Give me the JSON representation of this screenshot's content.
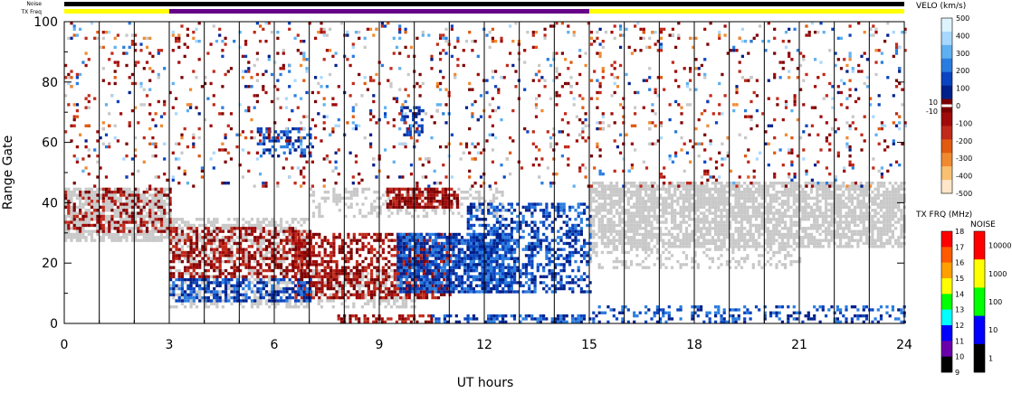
{
  "top_bar": {
    "noise_label": "Noise",
    "txfreq_label": "TX Freq",
    "noise_color": "#000000",
    "txfreq_segments": [
      {
        "from": 0,
        "to": 3,
        "color": "#ffff00"
      },
      {
        "from": 3,
        "to": 15,
        "color": "#660088"
      },
      {
        "from": 15,
        "to": 24,
        "color": "#ffff00"
      }
    ]
  },
  "chart_data": {
    "type": "heatmap",
    "title": "",
    "xlabel": "UT hours",
    "ylabel": "Range Gate",
    "xlim": [
      0,
      24
    ],
    "ylim": [
      0,
      100
    ],
    "x_ticks": [
      "0",
      "3",
      "6",
      "9",
      "12",
      "15",
      "18",
      "21",
      "24"
    ],
    "y_ticks": [
      "0",
      "20",
      "40",
      "60",
      "80",
      "100"
    ],
    "scan_boundaries_hours": [
      1,
      2,
      3,
      4,
      5,
      6,
      7,
      8,
      9,
      10,
      11,
      12,
      13,
      14,
      15,
      16,
      17,
      18,
      19,
      20,
      21,
      22,
      23
    ],
    "ground_scatter_color": "#c8c8c8",
    "regions": [
      {
        "kind": "ground",
        "x": [
          0,
          3
        ],
        "y": [
          27,
          45
        ],
        "density": 0.75
      },
      {
        "kind": "ground",
        "x": [
          3,
          7
        ],
        "y": [
          20,
          35
        ],
        "density": 0.55
      },
      {
        "kind": "ground",
        "x": [
          3,
          10
        ],
        "y": [
          5,
          18
        ],
        "density": 0.45
      },
      {
        "kind": "ground",
        "x": [
          7,
          12.5
        ],
        "y": [
          35,
          45
        ],
        "density": 0.3
      },
      {
        "kind": "ground",
        "x": [
          15,
          24
        ],
        "y": [
          25,
          47
        ],
        "density": 0.75
      },
      {
        "kind": "ground",
        "x": [
          15,
          21
        ],
        "y": [
          18,
          25
        ],
        "density": 0.3
      },
      {
        "kind": "neg",
        "x": [
          0,
          3
        ],
        "y": [
          30,
          45
        ],
        "density": 0.35
      },
      {
        "kind": "neg",
        "x": [
          3,
          7
        ],
        "y": [
          15,
          32
        ],
        "density": 0.5
      },
      {
        "kind": "neg",
        "x": [
          6.5,
          11
        ],
        "y": [
          8,
          30
        ],
        "density": 0.55
      },
      {
        "kind": "neg",
        "x": [
          9.2,
          11.2
        ],
        "y": [
          38,
          45
        ],
        "density": 0.8
      },
      {
        "kind": "neg",
        "x": [
          7.8,
          10.5
        ],
        "y": [
          0,
          3
        ],
        "density": 0.6
      },
      {
        "kind": "pos",
        "x": [
          3,
          7
        ],
        "y": [
          7,
          15
        ],
        "density": 0.55
      },
      {
        "kind": "pos",
        "x": [
          9.5,
          12.8
        ],
        "y": [
          10,
          30
        ],
        "density": 0.75
      },
      {
        "kind": "pos",
        "x": [
          11.5,
          15
        ],
        "y": [
          10,
          40
        ],
        "density": 0.45
      },
      {
        "kind": "pos",
        "x": [
          5.5,
          7
        ],
        "y": [
          55,
          65
        ],
        "density": 0.45
      },
      {
        "kind": "pos",
        "x": [
          9.6,
          10.2
        ],
        "y": [
          62,
          72
        ],
        "density": 0.55
      },
      {
        "kind": "pos",
        "x": [
          10.5,
          15
        ],
        "y": [
          0,
          3
        ],
        "density": 0.55
      },
      {
        "kind": "pos",
        "x": [
          15,
          24
        ],
        "y": [
          0,
          6
        ],
        "density": 0.3
      },
      {
        "kind": "neg",
        "x": [
          0,
          24
        ],
        "y": [
          45,
          100
        ],
        "density": 0.045
      },
      {
        "kind": "pos",
        "x": [
          0,
          24
        ],
        "y": [
          45,
          100
        ],
        "density": 0.015
      },
      {
        "kind": "orange",
        "x": [
          0,
          24
        ],
        "y": [
          45,
          100
        ],
        "density": 0.012
      },
      {
        "kind": "lightblue",
        "x": [
          0,
          24
        ],
        "y": [
          45,
          100
        ],
        "density": 0.012
      },
      {
        "kind": "ground",
        "x": [
          0,
          24
        ],
        "y": [
          45,
          100
        ],
        "density": 0.012
      }
    ],
    "velocity_scale": {
      "title": "VELO (km/s)",
      "ticks_top": [
        "500",
        "400",
        "300",
        "200",
        "100",
        "0"
      ],
      "ticks_bottom": [
        "-100",
        "-200",
        "-300",
        "-400",
        "-500"
      ],
      "inner_labels": [
        "10",
        "-10"
      ],
      "colors": [
        "#ddf4ff",
        "#a8d8ff",
        "#5fb0f0",
        "#2a7de0",
        "#0a44c0",
        "#00208a",
        "#7a0000",
        "#a00a0a",
        "#c02a1a",
        "#e05a10",
        "#f08a30",
        "#f8c070",
        "#ffe6c8"
      ]
    },
    "txfreq_scale": {
      "title": "TX FRQ (MHz)",
      "ticks": [
        "18",
        "17",
        "16",
        "15",
        "14",
        "13",
        "12",
        "11",
        "10",
        "9"
      ],
      "colors": [
        "#ff0000",
        "#ff5a00",
        "#ffa000",
        "#ffff00",
        "#00ff00",
        "#00ffff",
        "#0000ff",
        "#6a00aa",
        "#000000"
      ]
    },
    "noise_scale": {
      "title": "NOISE",
      "ticks": [
        "10000",
        "1000",
        "100",
        "10",
        "1"
      ],
      "colors": [
        "#ff0000",
        "#ffff00",
        "#00ff00",
        "#0000ff",
        "#000000"
      ]
    }
  }
}
